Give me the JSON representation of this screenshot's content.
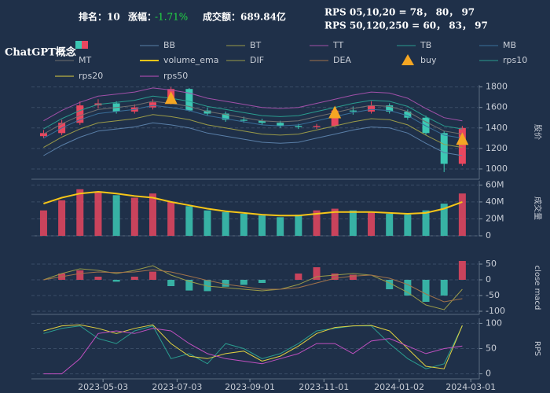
{
  "header": {
    "rank": "排名：10",
    "change_label": "涨幅：",
    "change": "-1.71%",
    "turnover": "成交额：689.84亿",
    "rps_short": "RPS 05,10,20 = 78， 80， 97",
    "rps_long": "RPS 50,120,250 = 60， 83， 97"
  },
  "chart_data": [
    {
      "type": "candlestick",
      "title": "ChatGPT概念",
      "ylabel": "股价",
      "x": [
        "2023-03-15",
        "2023-03-30",
        "2023-04-14",
        "2023-04-29",
        "2023-05-14",
        "2023-05-29",
        "2023-06-13",
        "2023-06-28",
        "2023-07-13",
        "2023-07-28",
        "2023-08-12",
        "2023-08-27",
        "2023-09-11",
        "2023-09-26",
        "2023-10-11",
        "2023-10-26",
        "2023-11-10",
        "2023-11-25",
        "2023-12-10",
        "2023-12-25",
        "2024-01-09",
        "2024-01-24",
        "2024-02-08",
        "2024-02-23"
      ],
      "open": [
        1320,
        1350,
        1450,
        1620,
        1640,
        1560,
        1600,
        1650,
        1780,
        1570,
        1540,
        1480,
        1470,
        1450,
        1420,
        1410,
        1420,
        1570,
        1560,
        1620,
        1560,
        1500,
        1350,
        1050
      ],
      "high": [
        1380,
        1480,
        1660,
        1680,
        1660,
        1630,
        1680,
        1800,
        1790,
        1600,
        1560,
        1510,
        1490,
        1470,
        1440,
        1440,
        1600,
        1610,
        1660,
        1640,
        1580,
        1520,
        1370,
        1420
      ],
      "low": [
        1300,
        1330,
        1430,
        1590,
        1540,
        1540,
        1580,
        1630,
        1560,
        1520,
        1460,
        1450,
        1430,
        1400,
        1390,
        1390,
        1410,
        1530,
        1540,
        1540,
        1480,
        1330,
        970,
        1030
      ],
      "close": [
        1350,
        1450,
        1620,
        1640,
        1560,
        1600,
        1650,
        1780,
        1570,
        1540,
        1480,
        1470,
        1450,
        1420,
        1410,
        1420,
        1570,
        1560,
        1620,
        1560,
        1500,
        1350,
        1050,
        1400
      ],
      "up_color": "#e8475f",
      "down_color": "#3cc8b4",
      "series": [
        {
          "name": "BB",
          "color": "#5a7fa8",
          "values": [
            1130,
            1230,
            1310,
            1370,
            1390,
            1410,
            1450,
            1430,
            1400,
            1350,
            1320,
            1290,
            1260,
            1250,
            1260,
            1300,
            1340,
            1380,
            1410,
            1400,
            1350,
            1250,
            1160,
            1130
          ]
        },
        {
          "name": "BT",
          "color": "#9a9a48",
          "values": [
            1210,
            1310,
            1390,
            1450,
            1470,
            1490,
            1530,
            1510,
            1480,
            1430,
            1400,
            1370,
            1340,
            1330,
            1340,
            1380,
            1420,
            1460,
            1490,
            1480,
            1430,
            1330,
            1240,
            1210
          ]
        },
        {
          "name": "TT",
          "color": "#a050a8",
          "values": [
            1470,
            1570,
            1650,
            1710,
            1730,
            1750,
            1790,
            1770,
            1740,
            1690,
            1660,
            1630,
            1600,
            1590,
            1600,
            1640,
            1680,
            1720,
            1750,
            1740,
            1690,
            1590,
            1500,
            1470
          ]
        },
        {
          "name": "TB",
          "color": "#2a9d8f",
          "values": [
            1390,
            1490,
            1570,
            1630,
            1650,
            1670,
            1710,
            1690,
            1660,
            1610,
            1580,
            1550,
            1520,
            1510,
            1520,
            1560,
            1600,
            1640,
            1670,
            1660,
            1610,
            1510,
            1420,
            1390
          ]
        },
        {
          "name": "MB",
          "color": "#3a6f9a",
          "values": [
            1300,
            1400,
            1480,
            1540,
            1560,
            1580,
            1620,
            1600,
            1570,
            1520,
            1490,
            1460,
            1430,
            1420,
            1430,
            1470,
            1510,
            1550,
            1580,
            1570,
            1520,
            1420,
            1330,
            1300
          ]
        },
        {
          "name": "MT",
          "color": "#707070",
          "values": [
            1340,
            1440,
            1520,
            1580,
            1600,
            1620,
            1660,
            1640,
            1610,
            1560,
            1530,
            1500,
            1470,
            1460,
            1470,
            1510,
            1550,
            1590,
            1620,
            1610,
            1560,
            1460,
            1370,
            1340
          ]
        },
        {
          "name": "buy",
          "color": "#f5a623",
          "marker": "triangle",
          "values": [
            null,
            null,
            null,
            null,
            null,
            null,
            null,
            1680,
            null,
            null,
            null,
            null,
            null,
            null,
            null,
            null,
            1540,
            null,
            null,
            null,
            null,
            null,
            null,
            1280
          ]
        }
      ],
      "xlim": [
        "2023-03-05",
        "2024-03-08"
      ],
      "ylim": [
        900,
        1820
      ],
      "yticks": [
        1000,
        1200,
        1400,
        1600,
        1800
      ],
      "grid": true
    },
    {
      "type": "bar",
      "ylabel": "成交量",
      "x": [
        "2023-03-15",
        "2023-03-30",
        "2023-04-14",
        "2023-04-29",
        "2023-05-14",
        "2023-05-29",
        "2023-06-13",
        "2023-06-28",
        "2023-07-13",
        "2023-07-28",
        "2023-08-12",
        "2023-08-27",
        "2023-09-11",
        "2023-09-26",
        "2023-10-11",
        "2023-10-26",
        "2023-11-10",
        "2023-11-25",
        "2023-12-10",
        "2023-12-25",
        "2024-01-09",
        "2024-01-24",
        "2024-02-08",
        "2024-02-23"
      ],
      "values": [
        30000000,
        42000000,
        55000000,
        52000000,
        48000000,
        45000000,
        50000000,
        40000000,
        35000000,
        30000000,
        28000000,
        26000000,
        24000000,
        22000000,
        25000000,
        30000000,
        32000000,
        30000000,
        28000000,
        26000000,
        25000000,
        30000000,
        38000000,
        50000000
      ],
      "series": [
        {
          "name": "volume_ema",
          "color": "#f5c518",
          "values": [
            38000000,
            45000000,
            50000000,
            52000000,
            50000000,
            47000000,
            45000000,
            40000000,
            36000000,
            32000000,
            29000000,
            27000000,
            25000000,
            24000000,
            24000000,
            26000000,
            28000000,
            28000000,
            28000000,
            27000000,
            26000000,
            27000000,
            32000000,
            40000000
          ]
        }
      ],
      "xlim": [
        "2023-03-05",
        "2024-03-08"
      ],
      "ylim": [
        0,
        65000000
      ],
      "yticks": [
        0,
        {
          "value": 20000000,
          "label": "20M"
        },
        {
          "value": 40000000,
          "label": "40M"
        },
        {
          "value": 60000000,
          "label": "60M"
        }
      ],
      "grid": true
    },
    {
      "type": "bar",
      "ylabel": "close macd",
      "up_color": "#e8475f",
      "down_color": "#3cc8b4",
      "x": [
        "2023-03-15",
        "2023-03-30",
        "2023-04-14",
        "2023-04-29",
        "2023-05-14",
        "2023-05-29",
        "2023-06-13",
        "2023-06-28",
        "2023-07-13",
        "2023-07-28",
        "2023-08-12",
        "2023-08-27",
        "2023-09-11",
        "2023-09-26",
        "2023-10-11",
        "2023-10-26",
        "2023-11-10",
        "2023-11-25",
        "2023-12-10",
        "2023-12-25",
        "2024-01-09",
        "2024-01-24",
        "2024-02-08",
        "2024-02-23"
      ],
      "values": [
        0,
        20,
        30,
        10,
        -6,
        10,
        26,
        -20,
        -34,
        -36,
        -22,
        -16,
        -10,
        0,
        20,
        40,
        20,
        16,
        0,
        -30,
        -50,
        -70,
        -50,
        60
      ],
      "series": [
        {
          "name": "DIF",
          "color": "#9a9a48",
          "values": [
            0,
            20,
            35,
            30,
            20,
            30,
            45,
            15,
            -5,
            -20,
            -25,
            -30,
            -35,
            -30,
            -15,
            10,
            15,
            20,
            15,
            -10,
            -40,
            -80,
            -95,
            -30
          ]
        },
        {
          "name": "DEA",
          "color": "#a0724a",
          "values": [
            0,
            10,
            20,
            25,
            23,
            25,
            32,
            25,
            12,
            -2,
            -14,
            -22,
            -30,
            -30,
            -25,
            -10,
            5,
            12,
            15,
            5,
            -15,
            -45,
            -70,
            -60
          ]
        }
      ],
      "xlim": [
        "2023-03-05",
        "2024-03-08"
      ],
      "ylim": [
        -110,
        60
      ],
      "yticks": [
        -100,
        -50,
        0,
        50
      ],
      "grid": true
    },
    {
      "type": "line",
      "ylabel": "RPS",
      "x": [
        "2023-03-15",
        "2023-03-30",
        "2023-04-14",
        "2023-04-29",
        "2023-05-14",
        "2023-05-29",
        "2023-06-13",
        "2023-06-28",
        "2023-07-13",
        "2023-07-28",
        "2023-08-12",
        "2023-08-27",
        "2023-09-11",
        "2023-09-26",
        "2023-10-11",
        "2023-10-26",
        "2023-11-10",
        "2023-11-25",
        "2023-12-10",
        "2023-12-25",
        "2024-01-09",
        "2024-01-24",
        "2024-02-08",
        "2024-02-23"
      ],
      "series": [
        {
          "name": "rps10",
          "color": "#2a9d8f",
          "values": [
            80,
            90,
            95,
            70,
            60,
            85,
            95,
            30,
            40,
            20,
            60,
            50,
            30,
            40,
            60,
            85,
            90,
            95,
            95,
            60,
            30,
            10,
            20,
            95
          ]
        },
        {
          "name": "rps20",
          "color": "#e0d040",
          "values": [
            85,
            95,
            97,
            90,
            80,
            90,
            97,
            60,
            35,
            30,
            40,
            45,
            25,
            35,
            55,
            80,
            92,
            95,
            96,
            85,
            50,
            15,
            10,
            96
          ]
        },
        {
          "name": "rps50",
          "color": "#c050c0",
          "values": [
            0,
            0,
            30,
            80,
            85,
            80,
            90,
            85,
            60,
            40,
            30,
            25,
            20,
            30,
            40,
            60,
            60,
            40,
            65,
            70,
            55,
            40,
            50,
            55
          ]
        }
      ],
      "xlim": [
        "2023-03-05",
        "2024-03-08"
      ],
      "ylim": [
        -10,
        110
      ],
      "yticks": [
        0,
        50,
        100
      ],
      "grid": true,
      "xticks": [
        "2023-05-03",
        "2023-07-03",
        "2023-09-01",
        "2023-11-01",
        "2024-01-02",
        "2024-03-01"
      ]
    }
  ]
}
